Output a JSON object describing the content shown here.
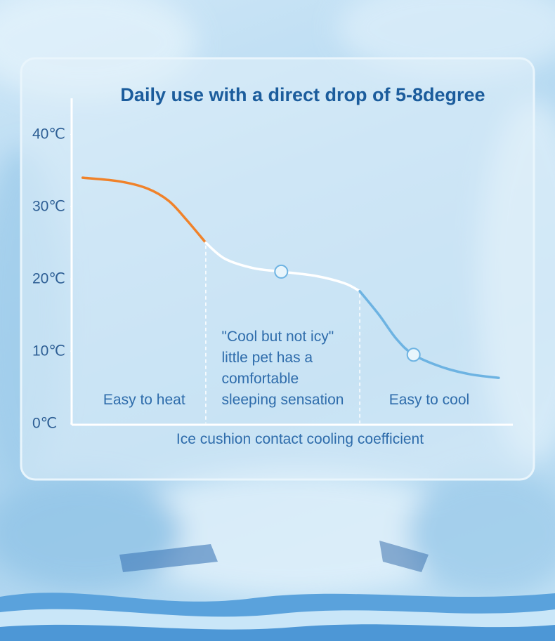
{
  "chart_data": {
    "type": "line",
    "title": "Daily use with a direct drop of 5-8degree",
    "xlabel": "Ice cushion contact cooling coefficient",
    "xlim": [
      0,
      100
    ],
    "ylim": [
      0,
      45
    ],
    "yticks": [
      {
        "value": 0,
        "label": "0℃"
      },
      {
        "value": 10,
        "label": "10℃"
      },
      {
        "value": 20,
        "label": "20℃"
      },
      {
        "value": 30,
        "label": "30℃"
      },
      {
        "value": 40,
        "label": "40℃"
      }
    ],
    "series": [
      {
        "name": "Easy to heat",
        "color": "#f0822a",
        "x": [
          2.5,
          10.8,
          17.2,
          22,
          26,
          30.4
        ],
        "values": [
          34,
          33.5,
          32.5,
          30.8,
          28.2,
          25
        ],
        "marked": []
      },
      {
        "name": "\"Cool but not icy\"\nlittle pet has a\ncomfortable\nsleeping sensation",
        "color": "#ffffff",
        "x": [
          30.4,
          34.7,
          41.1,
          47.5,
          55.4,
          61.8,
          65.3
        ],
        "values": [
          25,
          22.8,
          21.5,
          21,
          20.4,
          19.4,
          18.3
        ],
        "marked": [
          3
        ]
      },
      {
        "name": "Easy to cool",
        "color": "#6db3e2",
        "x": [
          65.3,
          69.7,
          73.6,
          77.5,
          83.9,
          90.3,
          96.8
        ],
        "values": [
          18.3,
          15,
          11.7,
          9.5,
          7.8,
          6.8,
          6.3
        ],
        "marked": [
          3
        ]
      }
    ]
  }
}
